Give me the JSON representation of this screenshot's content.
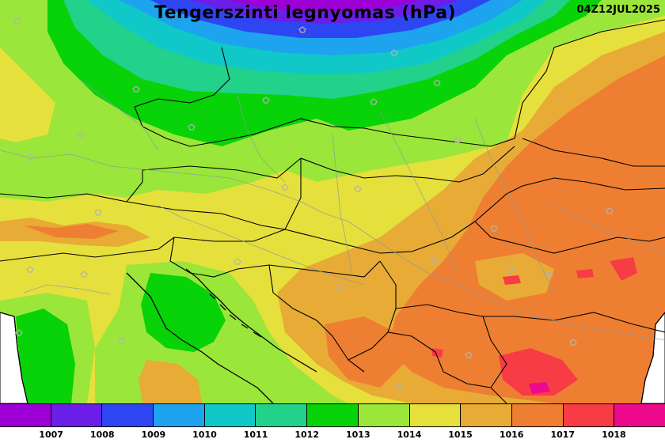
{
  "map": {
    "title": "Tengerszinti legnyomas (hPa)",
    "timestamp": "04Z12JUL2025",
    "quantity": "sea-level pressure",
    "unit": "hPa",
    "region": "Central Europe / Carpathian Basin",
    "pressure_pattern": {
      "low_center_hPa": 1007,
      "low_location": "northern Poland / Baltic edge, top of map",
      "high_max_hPa": 1018,
      "high_location": "southern Serbia / Bulgaria border, bottom right"
    }
  },
  "legend": {
    "levels": [
      {
        "label": "1007",
        "color": "#9c00d6"
      },
      {
        "label": "1008",
        "color": "#6a1ee8"
      },
      {
        "label": "1009",
        "color": "#2e46f2"
      },
      {
        "label": "1010",
        "color": "#1ea3ef"
      },
      {
        "label": "1011",
        "color": "#10c8c8"
      },
      {
        "label": "1012",
        "color": "#22d28a"
      },
      {
        "label": "1013",
        "color": "#08d208"
      },
      {
        "label": "1014",
        "color": "#9be63a"
      },
      {
        "label": "1015",
        "color": "#e6e03c"
      },
      {
        "label": "1016",
        "color": "#e8ab36"
      },
      {
        "label": "1017",
        "color": "#ee7f32"
      },
      {
        "label": "1018",
        "color": "#f73c46"
      },
      {
        "label": "",
        "color": "#ee0a8c"
      }
    ]
  }
}
